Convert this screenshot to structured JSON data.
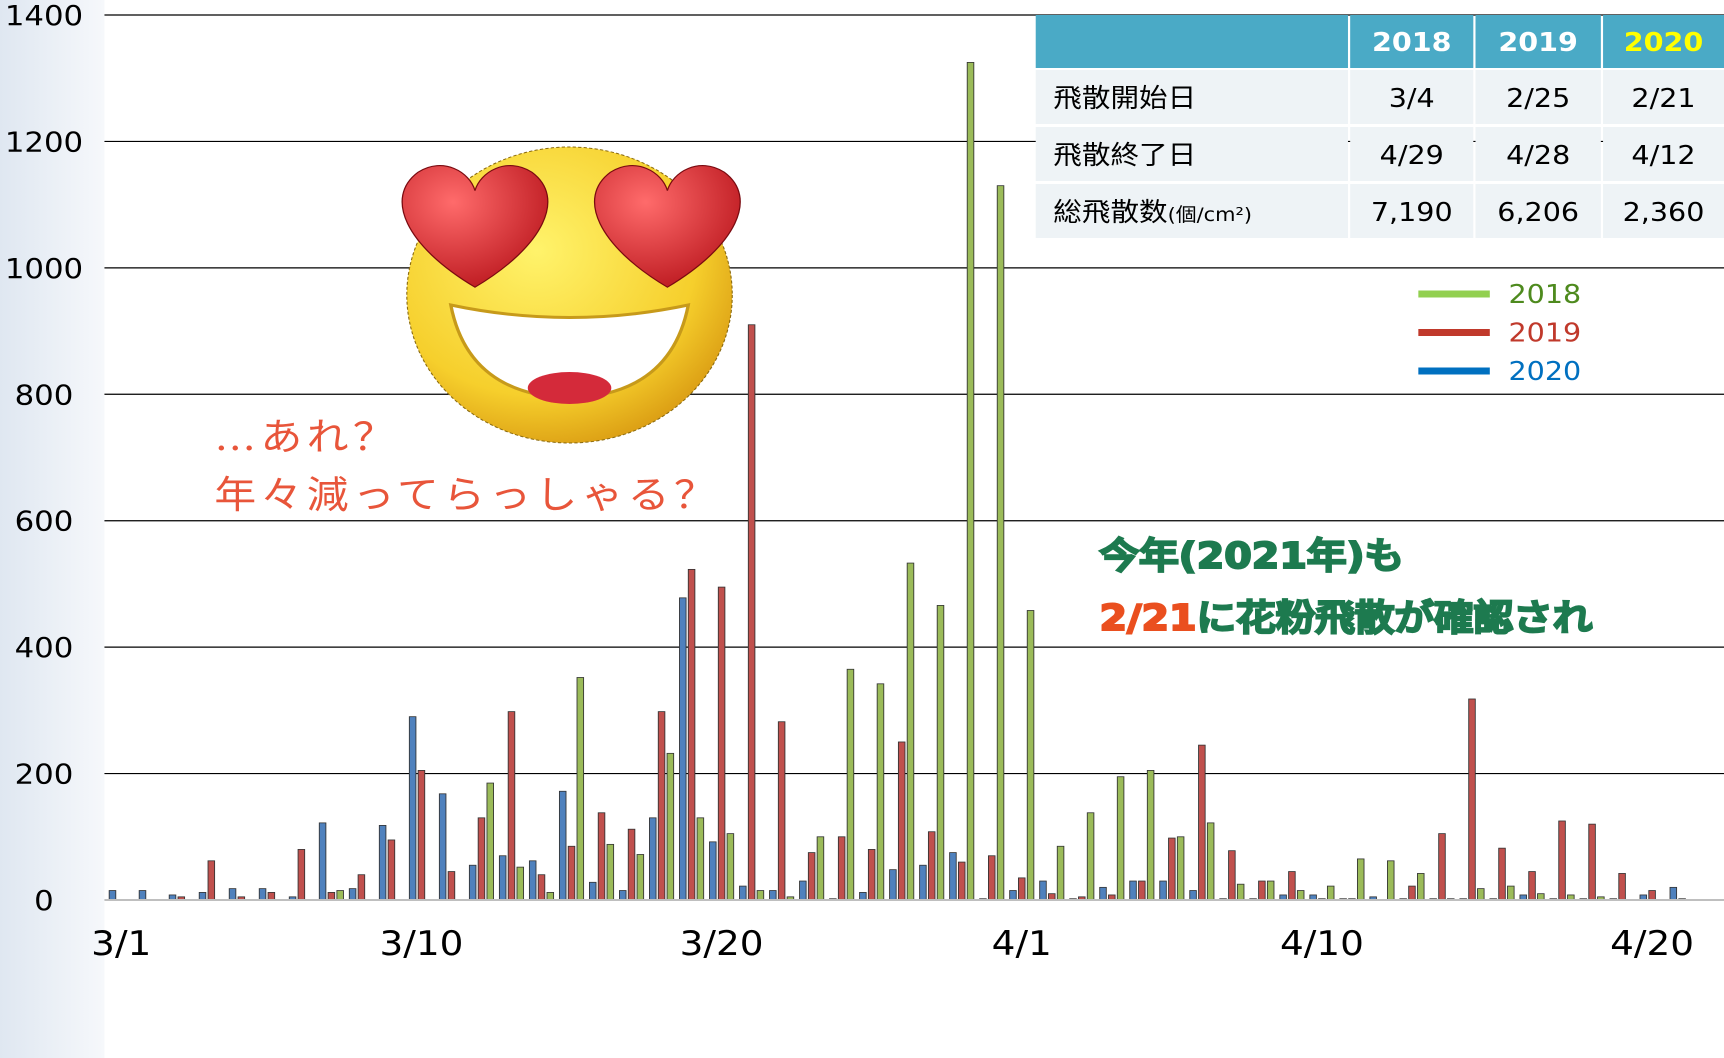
{
  "chart_data": {
    "type": "bar",
    "categories": [
      null,
      "3/1",
      null,
      null,
      null,
      null,
      null,
      null,
      null,
      null,
      null,
      "3/10",
      null,
      null,
      null,
      null,
      null,
      null,
      null,
      null,
      null,
      "3/20",
      null,
      null,
      null,
      null,
      null,
      null,
      null,
      null,
      null,
      "4/1",
      null,
      null,
      null,
      null,
      null,
      null,
      null,
      null,
      null,
      "4/10",
      null,
      null,
      null,
      null,
      null,
      null,
      null,
      null,
      null,
      null,
      "4/20",
      null
    ],
    "series": [
      {
        "name": "2018",
        "color": "#9bbb59",
        "legend_color": "#92d050",
        "text_color": "#4e8a1e",
        "values": [
          0,
          0,
          0,
          0,
          0,
          0,
          0,
          0,
          15,
          0,
          0,
          0,
          0,
          185,
          52,
          12,
          352,
          88,
          72,
          232,
          130,
          105,
          15,
          5,
          100,
          365,
          342,
          533,
          466,
          1325,
          1130,
          458,
          85,
          138,
          195,
          205,
          100,
          122,
          25,
          30,
          15,
          22,
          65,
          62,
          42,
          2,
          18,
          22,
          10,
          8,
          5,
          0,
          0,
          0
        ]
      },
      {
        "name": "2019",
        "color": "#c0504d",
        "legend_color": "#c0392b",
        "text_color": "#c0392b",
        "values": [
          0,
          0,
          0,
          5,
          62,
          5,
          12,
          80,
          12,
          40,
          95,
          205,
          45,
          130,
          298,
          40,
          85,
          138,
          112,
          298,
          523,
          495,
          910,
          282,
          75,
          100,
          80,
          250,
          108,
          60,
          70,
          35,
          10,
          5,
          8,
          30,
          98,
          245,
          78,
          30,
          45,
          2,
          2,
          0,
          22,
          105,
          318,
          82,
          45,
          125,
          120,
          42,
          15,
          2
        ]
      },
      {
        "name": "2020",
        "color": "#4f81bd",
        "legend_color": "#0070c0",
        "text_color": "#0070c0",
        "values": [
          0,
          15,
          15,
          8,
          12,
          18,
          18,
          5,
          122,
          18,
          118,
          290,
          168,
          55,
          70,
          62,
          172,
          28,
          15,
          130,
          478,
          92,
          22,
          15,
          30,
          2,
          12,
          48,
          55,
          75,
          2,
          15,
          30,
          2,
          20,
          30,
          30,
          15,
          2,
          2,
          8,
          8,
          2,
          5,
          2,
          2,
          2,
          2,
          8,
          2,
          2,
          2,
          8,
          20
        ]
      }
    ],
    "ylim": [
      0,
      1400
    ],
    "yticks": [
      0,
      200,
      400,
      600,
      800,
      1000,
      1200,
      1400
    ],
    "grid": true,
    "annotations": {
      "note": [
        "…あれ？",
        "年々減ってらっしゃる？"
      ],
      "highlight_line1": "今年(2021年)も",
      "highlight_date": "2/21",
      "highlight_rest": "に花粉飛散が確認され"
    }
  },
  "table": {
    "columns": [
      "2018",
      "2019",
      "2020"
    ],
    "rows": [
      {
        "label": "飛散開始日",
        "values": [
          "3/4",
          "2/25",
          "2/21"
        ]
      },
      {
        "label": "飛散終了日",
        "values": [
          "4/29",
          "4/28",
          "4/12"
        ]
      },
      {
        "label": "総飛散数",
        "unit": "(個/cm²)",
        "values": [
          "7,190",
          "6,206",
          "2,360"
        ]
      }
    ]
  }
}
